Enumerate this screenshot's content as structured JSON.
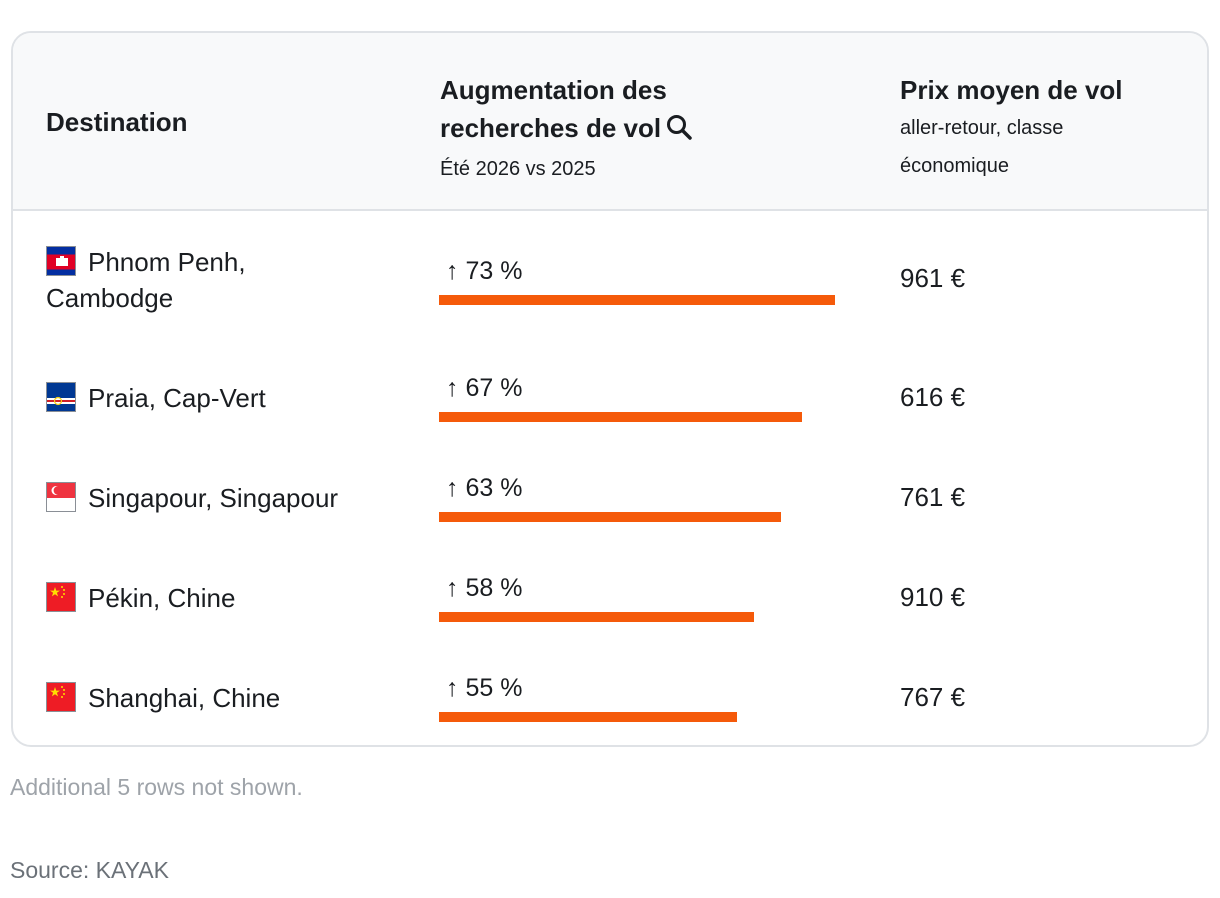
{
  "header": {
    "destination": "Destination",
    "search_title": "Augmentation des recherches de vol",
    "search_sub": "Été 2026 vs 2025",
    "price_title": "Prix moyen de vol",
    "price_sub": "aller-retour, classe économique"
  },
  "chart_data": {
    "type": "table",
    "columns": [
      "Destination",
      "Augmentation des recherches de vol",
      "Prix moyen de vol"
    ],
    "rows": [
      {
        "destination_line1": "Phnom Penh,",
        "destination_line2": "Cambodge",
        "flag": "cambodia-flag-icon",
        "increase": 73,
        "increase_label": "↑ 73 %",
        "price": 961,
        "price_label": "961 €"
      },
      {
        "destination_line1": "Praia, Cap-Vert",
        "destination_line2": "",
        "flag": "cape-verde-flag-icon",
        "increase": 67,
        "increase_label": "↑ 67 %",
        "price": 616,
        "price_label": "616 €"
      },
      {
        "destination_line1": "Singapour, Singapour",
        "destination_line2": "",
        "flag": "singapore-flag-icon",
        "increase": 63,
        "increase_label": "↑ 63 %",
        "price": 761,
        "price_label": "761 €"
      },
      {
        "destination_line1": "Pékin, Chine",
        "destination_line2": "",
        "flag": "china-flag-icon",
        "increase": 58,
        "increase_label": "↑ 58 %",
        "price": 910,
        "price_label": "910 €"
      },
      {
        "destination_line1": "Shanghai, Chine",
        "destination_line2": "",
        "flag": "china-flag-icon",
        "increase": 55,
        "increase_label": "↑ 55 %",
        "price": 767,
        "price_label": "767 €"
      }
    ],
    "bar_max": 73,
    "bar_color": "#f55a0a"
  },
  "footer": {
    "note": "Additional 5 rows not shown.",
    "source": "Source: KAYAK"
  }
}
